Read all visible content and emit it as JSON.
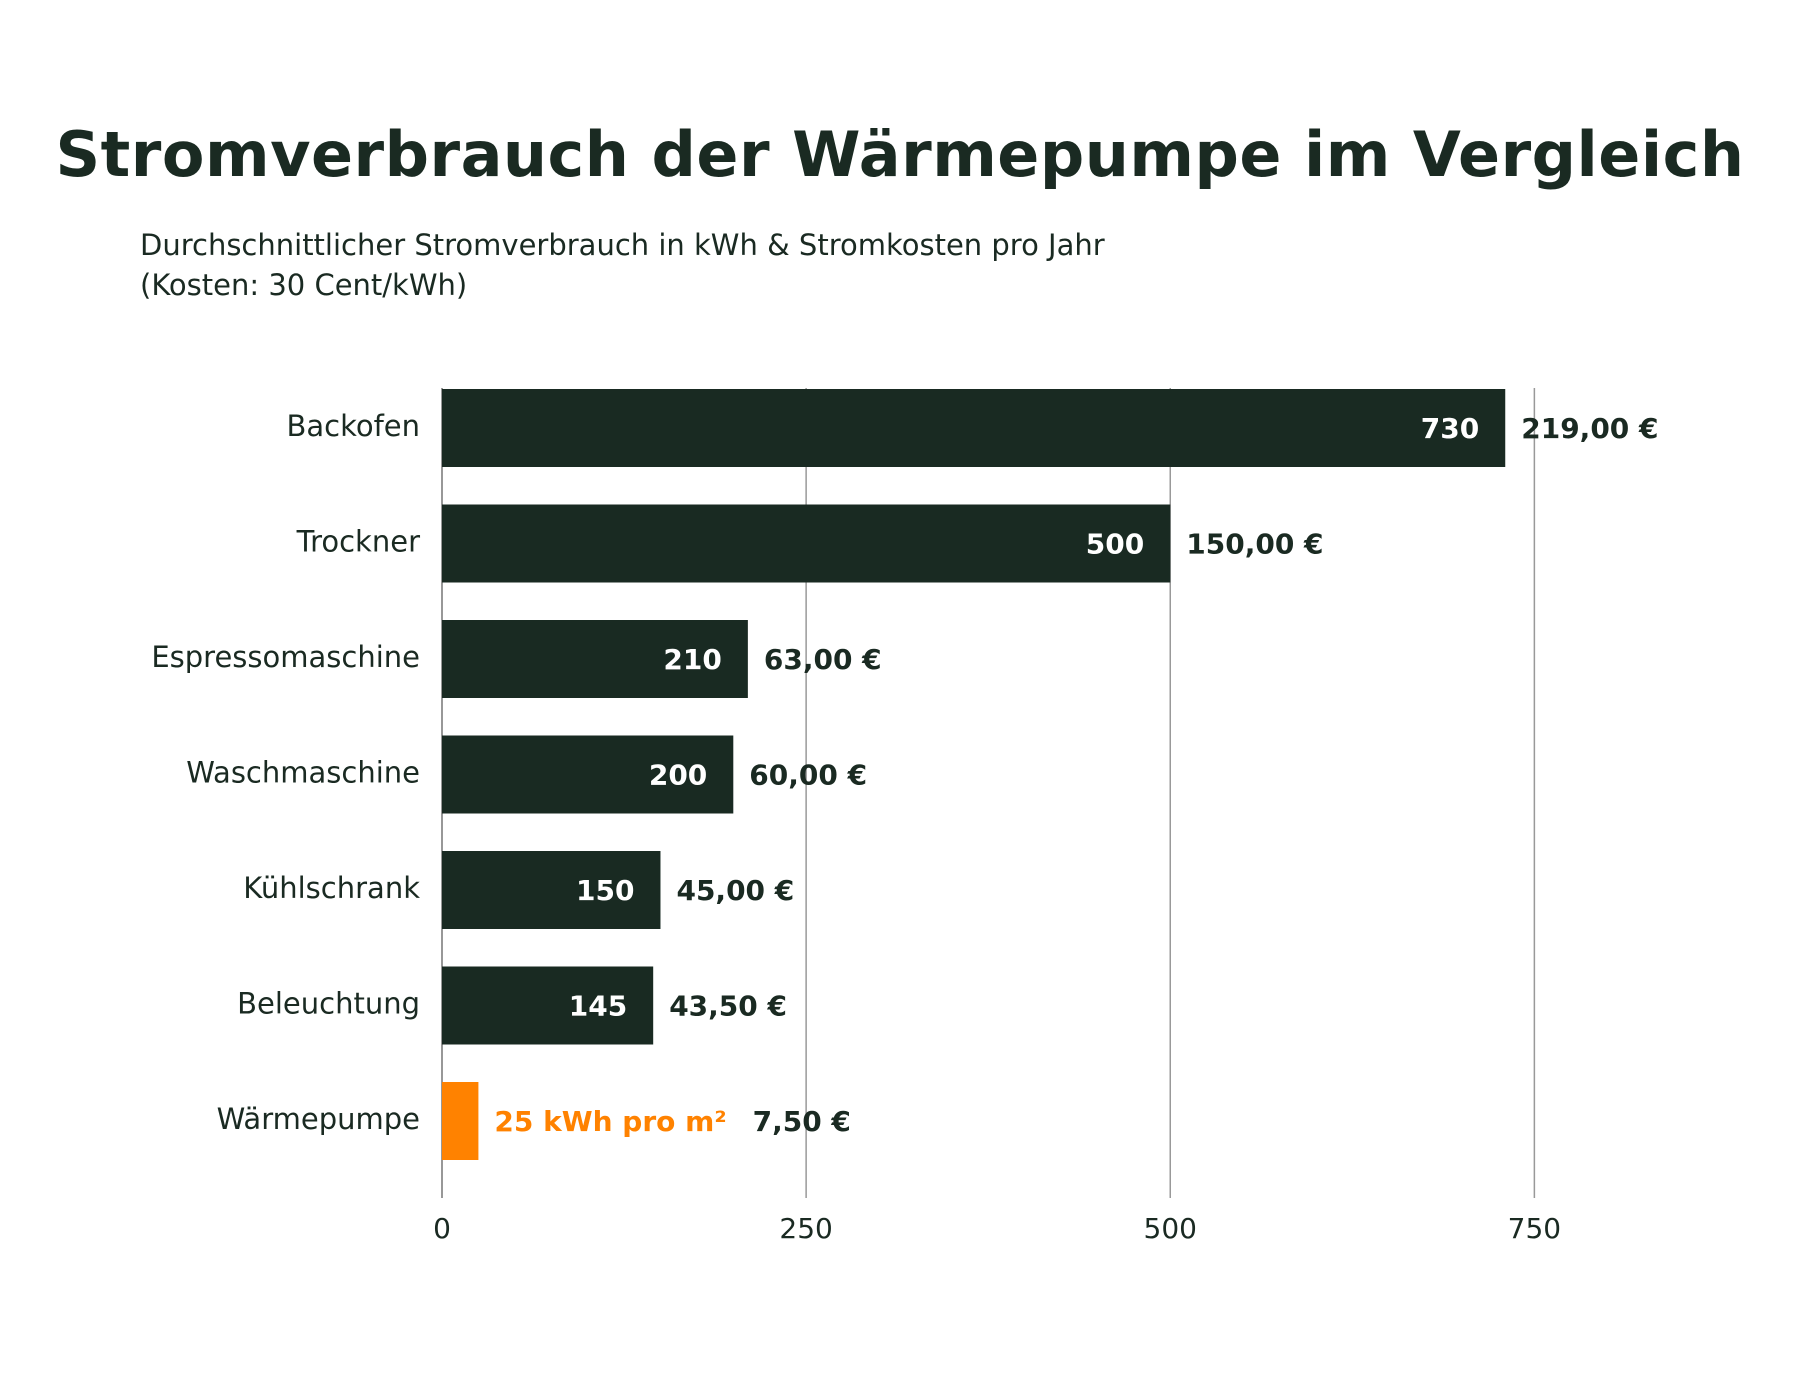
{
  "title": "Stromverbrauch der Wärmepumpe im Vergleich",
  "subtitle_line1": "Durchschnittlicher Stromverbrauch in kWh & Stromkosten pro Jahr",
  "subtitle_line2": "(Kosten: 30 Cent/kWh)",
  "colors": {
    "bar": "#192a22",
    "highlight": "#ff8200",
    "text": "#1a2a22",
    "grid": "#999999"
  },
  "chart_data": {
    "type": "bar",
    "orientation": "horizontal",
    "categories": [
      "Backofen",
      "Trockner",
      "Espressomaschine",
      "Waschmaschine",
      "Kühlschrank",
      "Beleuchtung",
      "Wärmepumpe"
    ],
    "values": [
      730,
      500,
      210,
      200,
      150,
      145,
      25
    ],
    "value_labels": [
      "730",
      "500",
      "210",
      "200",
      "150",
      "145",
      "25 kWh pro m²"
    ],
    "cost_labels": [
      "219,00  €",
      "150,00 €",
      "63,00 €",
      "60,00 €",
      "45,00 €",
      "43,50 €",
      "7,50 €"
    ],
    "highlight_index": 6,
    "xlim": [
      0,
      850
    ],
    "xticks": [
      0,
      250,
      500,
      750
    ],
    "xtick_labels": [
      "0",
      "250",
      "500",
      "750"
    ],
    "xlabel": "",
    "ylabel": "",
    "grid": "vertical"
  }
}
